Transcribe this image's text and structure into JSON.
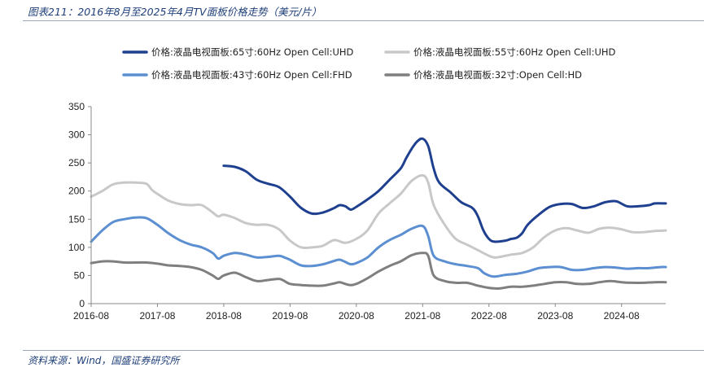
{
  "header": {
    "title": "图表211：2016年8月至2025年4月TV面板价格走势（美元/片）"
  },
  "footer": {
    "source": "资料来源：Wind，国盛证券研究所"
  },
  "chart_data": {
    "type": "line",
    "title": "图表211：2016年8月至2025年4月TV面板价格走势（美元/片）",
    "xlabel": "",
    "ylabel": "",
    "ylim": [
      0,
      350
    ],
    "yticks": [
      0,
      50,
      100,
      150,
      200,
      250,
      300,
      350
    ],
    "xlim": [
      "2016-08",
      "2025-04"
    ],
    "xticks": [
      "2016-08",
      "2017-08",
      "2018-08",
      "2019-08",
      "2020-08",
      "2021-08",
      "2022-08",
      "2023-08",
      "2024-08"
    ],
    "grid": false,
    "legend_position": "top",
    "series": [
      {
        "name": "价格:液晶电视面板:65寸:60Hz Open Cell:UHD",
        "color": "#1f3f8f",
        "points": [
          [
            "2018-08",
            245
          ],
          [
            "2018-10",
            243
          ],
          [
            "2018-12",
            235
          ],
          [
            "2019-02",
            220
          ],
          [
            "2019-04",
            213
          ],
          [
            "2019-06",
            207
          ],
          [
            "2019-08",
            190
          ],
          [
            "2019-10",
            170
          ],
          [
            "2019-12",
            160
          ],
          [
            "2020-02",
            162
          ],
          [
            "2020-04",
            170
          ],
          [
            "2020-05",
            175
          ],
          [
            "2020-06",
            173
          ],
          [
            "2020-07",
            167
          ],
          [
            "2020-08",
            172
          ],
          [
            "2020-10",
            185
          ],
          [
            "2020-12",
            200
          ],
          [
            "2021-02",
            220
          ],
          [
            "2021-04",
            240
          ],
          [
            "2021-05",
            258
          ],
          [
            "2021-06",
            275
          ],
          [
            "2021-07",
            288
          ],
          [
            "2021-08",
            293
          ],
          [
            "2021-09",
            280
          ],
          [
            "2021-10",
            240
          ],
          [
            "2021-11",
            215
          ],
          [
            "2022-01",
            198
          ],
          [
            "2022-03",
            180
          ],
          [
            "2022-05",
            170
          ],
          [
            "2022-06",
            155
          ],
          [
            "2022-07",
            130
          ],
          [
            "2022-08",
            115
          ],
          [
            "2022-09",
            110
          ],
          [
            "2022-11",
            112
          ],
          [
            "2022-12",
            115
          ],
          [
            "2023-01",
            117
          ],
          [
            "2023-02",
            125
          ],
          [
            "2023-03",
            140
          ],
          [
            "2023-05",
            158
          ],
          [
            "2023-07",
            172
          ],
          [
            "2023-09",
            177
          ],
          [
            "2023-11",
            177
          ],
          [
            "2024-01",
            170
          ],
          [
            "2024-03",
            173
          ],
          [
            "2024-05",
            180
          ],
          [
            "2024-07",
            182
          ],
          [
            "2024-09",
            173
          ],
          [
            "2024-11",
            173
          ],
          [
            "2025-01",
            175
          ],
          [
            "2025-02",
            178
          ],
          [
            "2025-04",
            178
          ]
        ]
      },
      {
        "name": "价格:液晶电视面板:55寸:60Hz Open Cell:UHD",
        "color": "#c8c8c8",
        "points": [
          [
            "2016-08",
            190
          ],
          [
            "2016-10",
            200
          ],
          [
            "2016-12",
            212
          ],
          [
            "2017-02",
            215
          ],
          [
            "2017-04",
            215
          ],
          [
            "2017-06",
            213
          ],
          [
            "2017-07",
            202
          ],
          [
            "2017-08",
            195
          ],
          [
            "2017-10",
            183
          ],
          [
            "2017-12",
            177
          ],
          [
            "2018-02",
            175
          ],
          [
            "2018-04",
            175
          ],
          [
            "2018-06",
            162
          ],
          [
            "2018-07",
            155
          ],
          [
            "2018-08",
            158
          ],
          [
            "2018-10",
            152
          ],
          [
            "2018-12",
            143
          ],
          [
            "2019-02",
            140
          ],
          [
            "2019-04",
            140
          ],
          [
            "2019-06",
            132
          ],
          [
            "2019-08",
            112
          ],
          [
            "2019-10",
            100
          ],
          [
            "2019-12",
            100
          ],
          [
            "2020-02",
            103
          ],
          [
            "2020-04",
            113
          ],
          [
            "2020-06",
            108
          ],
          [
            "2020-08",
            115
          ],
          [
            "2020-10",
            130
          ],
          [
            "2020-12",
            160
          ],
          [
            "2021-02",
            178
          ],
          [
            "2021-04",
            195
          ],
          [
            "2021-06",
            218
          ],
          [
            "2021-08",
            228
          ],
          [
            "2021-09",
            215
          ],
          [
            "2021-10",
            175
          ],
          [
            "2021-12",
            140
          ],
          [
            "2022-02",
            115
          ],
          [
            "2022-04",
            105
          ],
          [
            "2022-06",
            95
          ],
          [
            "2022-08",
            85
          ],
          [
            "2022-09",
            82
          ],
          [
            "2022-10",
            83
          ],
          [
            "2022-12",
            87
          ],
          [
            "2023-02",
            90
          ],
          [
            "2023-04",
            100
          ],
          [
            "2023-06",
            118
          ],
          [
            "2023-08",
            130
          ],
          [
            "2023-10",
            134
          ],
          [
            "2023-12",
            130
          ],
          [
            "2024-02",
            126
          ],
          [
            "2024-04",
            133
          ],
          [
            "2024-06",
            135
          ],
          [
            "2024-08",
            132
          ],
          [
            "2024-10",
            127
          ],
          [
            "2024-12",
            127
          ],
          [
            "2025-02",
            129
          ],
          [
            "2025-04",
            130
          ]
        ]
      },
      {
        "name": "价格:液晶电视面板:43寸:60Hz Open Cell:FHD",
        "color": "#5b8fd1",
        "points": [
          [
            "2016-08",
            110
          ],
          [
            "2016-10",
            130
          ],
          [
            "2016-12",
            145
          ],
          [
            "2017-02",
            150
          ],
          [
            "2017-04",
            153
          ],
          [
            "2017-06",
            152
          ],
          [
            "2017-08",
            140
          ],
          [
            "2017-10",
            125
          ],
          [
            "2017-12",
            113
          ],
          [
            "2018-02",
            105
          ],
          [
            "2018-04",
            100
          ],
          [
            "2018-06",
            90
          ],
          [
            "2018-07",
            80
          ],
          [
            "2018-08",
            85
          ],
          [
            "2018-10",
            90
          ],
          [
            "2018-12",
            87
          ],
          [
            "2019-02",
            82
          ],
          [
            "2019-04",
            83
          ],
          [
            "2019-06",
            85
          ],
          [
            "2019-07",
            82
          ],
          [
            "2019-08",
            78
          ],
          [
            "2019-10",
            68
          ],
          [
            "2019-12",
            67
          ],
          [
            "2020-02",
            70
          ],
          [
            "2020-04",
            76
          ],
          [
            "2020-05",
            78
          ],
          [
            "2020-06",
            74
          ],
          [
            "2020-07",
            70
          ],
          [
            "2020-08",
            72
          ],
          [
            "2020-10",
            82
          ],
          [
            "2020-12",
            100
          ],
          [
            "2021-02",
            113
          ],
          [
            "2021-04",
            122
          ],
          [
            "2021-06",
            133
          ],
          [
            "2021-08",
            138
          ],
          [
            "2021-09",
            120
          ],
          [
            "2021-10",
            85
          ],
          [
            "2021-12",
            75
          ],
          [
            "2022-02",
            70
          ],
          [
            "2022-04",
            67
          ],
          [
            "2022-06",
            63
          ],
          [
            "2022-07",
            55
          ],
          [
            "2022-08",
            50
          ],
          [
            "2022-09",
            48
          ],
          [
            "2022-11",
            51
          ],
          [
            "2023-01",
            53
          ],
          [
            "2023-03",
            57
          ],
          [
            "2023-05",
            63
          ],
          [
            "2023-07",
            65
          ],
          [
            "2023-09",
            65
          ],
          [
            "2023-11",
            60
          ],
          [
            "2024-01",
            60
          ],
          [
            "2024-03",
            63
          ],
          [
            "2024-05",
            65
          ],
          [
            "2024-07",
            64
          ],
          [
            "2024-09",
            62
          ],
          [
            "2024-11",
            63
          ],
          [
            "2025-01",
            63
          ],
          [
            "2025-03",
            65
          ],
          [
            "2025-04",
            65
          ]
        ]
      },
      {
        "name": "价格:液晶电视面板:32寸:Open Cell:HD",
        "color": "#7f7f7f",
        "points": [
          [
            "2016-08",
            72
          ],
          [
            "2016-10",
            75
          ],
          [
            "2016-12",
            75
          ],
          [
            "2017-02",
            73
          ],
          [
            "2017-04",
            73
          ],
          [
            "2017-06",
            73
          ],
          [
            "2017-08",
            71
          ],
          [
            "2017-10",
            68
          ],
          [
            "2017-12",
            67
          ],
          [
            "2018-02",
            65
          ],
          [
            "2018-04",
            60
          ],
          [
            "2018-06",
            50
          ],
          [
            "2018-07",
            44
          ],
          [
            "2018-08",
            50
          ],
          [
            "2018-10",
            55
          ],
          [
            "2018-12",
            47
          ],
          [
            "2019-02",
            40
          ],
          [
            "2019-04",
            42
          ],
          [
            "2019-06",
            44
          ],
          [
            "2019-07",
            40
          ],
          [
            "2019-08",
            35
          ],
          [
            "2019-10",
            33
          ],
          [
            "2019-12",
            32
          ],
          [
            "2020-02",
            32
          ],
          [
            "2020-04",
            36
          ],
          [
            "2020-05",
            38
          ],
          [
            "2020-06",
            35
          ],
          [
            "2020-07",
            33
          ],
          [
            "2020-08",
            35
          ],
          [
            "2020-10",
            45
          ],
          [
            "2020-12",
            57
          ],
          [
            "2021-02",
            67
          ],
          [
            "2021-04",
            75
          ],
          [
            "2021-06",
            86
          ],
          [
            "2021-08",
            90
          ],
          [
            "2021-09",
            85
          ],
          [
            "2021-10",
            50
          ],
          [
            "2021-12",
            40
          ],
          [
            "2022-02",
            37
          ],
          [
            "2022-04",
            37
          ],
          [
            "2022-06",
            32
          ],
          [
            "2022-08",
            28
          ],
          [
            "2022-09",
            27
          ],
          [
            "2022-10",
            27
          ],
          [
            "2022-12",
            30
          ],
          [
            "2023-02",
            30
          ],
          [
            "2023-04",
            32
          ],
          [
            "2023-06",
            35
          ],
          [
            "2023-08",
            38
          ],
          [
            "2023-10",
            38
          ],
          [
            "2023-12",
            35
          ],
          [
            "2024-02",
            35
          ],
          [
            "2024-04",
            38
          ],
          [
            "2024-06",
            40
          ],
          [
            "2024-08",
            38
          ],
          [
            "2024-10",
            37
          ],
          [
            "2024-12",
            37
          ],
          [
            "2025-02",
            38
          ],
          [
            "2025-04",
            38
          ]
        ]
      }
    ]
  }
}
